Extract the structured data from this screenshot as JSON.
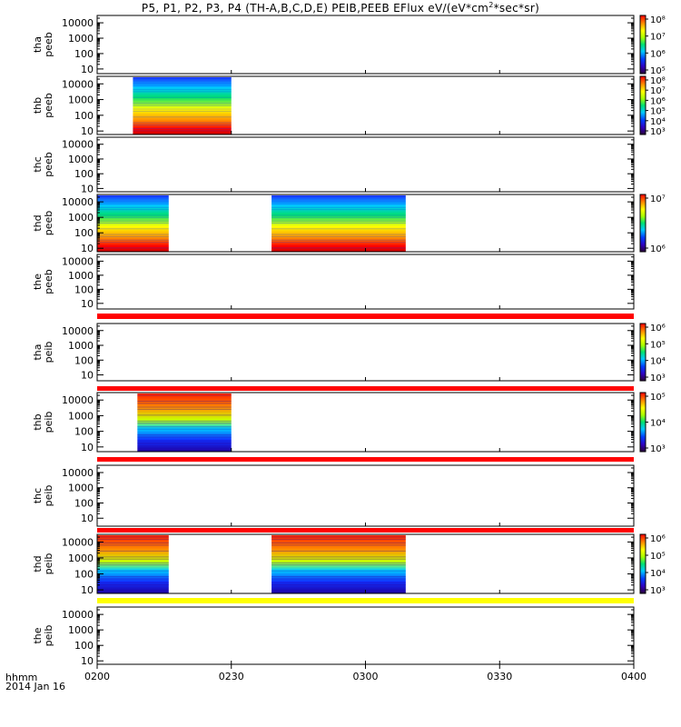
{
  "figure": {
    "title_text": "P5, P1, P2, P3, P4 (TH-A,B,C,D,E) PEIB,PEEB EFlux eV/(eV*cm",
    "title_sup": "2",
    "title_tail": "*sec*sr)",
    "time_label": "hhmm",
    "date_label": "2014 Jan 16",
    "accent_colors": {
      "quality_bar_red": "#ff0000",
      "quality_bar_yellow": "#ffff00"
    }
  },
  "chart_data": {
    "type": "heatmap",
    "x_axis": {
      "unit": "hhmm",
      "range": [
        "0200",
        "0400"
      ],
      "ticks": [
        "0200",
        "0230",
        "0300",
        "0330",
        "0400"
      ]
    },
    "y_axis": {
      "scale": "log",
      "unit": "eV"
    },
    "colorbar_scale": "log",
    "panels": [
      {
        "probe": "tha",
        "product": "peeb",
        "ylabel": [
          "tha",
          "peeb"
        ],
        "yticks": [
          "10000",
          "1000",
          "100",
          "10"
        ],
        "ylim": [
          5,
          30000
        ],
        "data_intervals": [],
        "colorbar_ticks": [
          "10⁸",
          "10⁷",
          "10⁶",
          "10⁵"
        ]
      },
      {
        "probe": "thb",
        "product": "peeb",
        "ylabel": [
          "thb",
          "peeb"
        ],
        "yticks": [
          "10000",
          "1000",
          "100",
          "10"
        ],
        "ylim": [
          6,
          30000
        ],
        "data_intervals": [
          [
            "0208",
            "0230"
          ]
        ],
        "colorbar_ticks": [
          "10⁸",
          "10⁷",
          "10⁶",
          "10⁵",
          "10⁴",
          "10³"
        ]
      },
      {
        "probe": "thc",
        "product": "peeb",
        "ylabel": [
          "thc",
          "peeb"
        ],
        "yticks": [
          "10000",
          "1000",
          "100",
          "10"
        ],
        "ylim": [
          6,
          30000
        ],
        "data_intervals": [],
        "colorbar_ticks": []
      },
      {
        "probe": "thd",
        "product": "peeb",
        "ylabel": [
          "thd",
          "peeb"
        ],
        "yticks": [
          "10000",
          "1000",
          "100",
          "10"
        ],
        "ylim": [
          6,
          30000
        ],
        "data_intervals": [
          [
            "0200",
            "0216"
          ],
          [
            "0239",
            "0309"
          ]
        ],
        "colorbar_ticks": [
          "10⁷",
          "10⁶"
        ]
      },
      {
        "probe": "the",
        "product": "peeb",
        "ylabel": [
          "the",
          "peeb"
        ],
        "yticks": [
          "10000",
          "1000",
          "100",
          "10"
        ],
        "ylim": [
          4,
          30000
        ],
        "data_intervals": [],
        "colorbar_ticks": []
      },
      {
        "probe": "tha",
        "product": "peib",
        "ylabel": [
          "tha",
          "peib"
        ],
        "yticks": [
          "10000",
          "1000",
          "100",
          "10"
        ],
        "ylim": [
          4,
          30000
        ],
        "data_intervals": [],
        "colorbar_ticks": [
          "10⁶",
          "10⁵",
          "10⁴",
          "10³"
        ]
      },
      {
        "probe": "thb",
        "product": "peib",
        "ylabel": [
          "thb",
          "peib"
        ],
        "yticks": [
          "10000",
          "1000",
          "100",
          "10"
        ],
        "ylim": [
          5,
          30000
        ],
        "data_intervals": [
          [
            "0209",
            "0230"
          ]
        ],
        "colorbar_ticks": [
          "10⁵",
          "10⁴",
          "10³"
        ]
      },
      {
        "probe": "thc",
        "product": "peib",
        "ylabel": [
          "thc",
          "peib"
        ],
        "yticks": [
          "10000",
          "1000",
          "100",
          "10"
        ],
        "ylim": [
          3,
          30000
        ],
        "data_intervals": [],
        "colorbar_ticks": []
      },
      {
        "probe": "thd",
        "product": "peib",
        "ylabel": [
          "thd",
          "peib"
        ],
        "yticks": [
          "10000",
          "1000",
          "100",
          "10"
        ],
        "ylim": [
          6,
          30000
        ],
        "data_intervals": [
          [
            "0200",
            "0216"
          ],
          [
            "0239",
            "0309"
          ]
        ],
        "colorbar_ticks": [
          "10⁶",
          "10⁵",
          "10⁴",
          "10³"
        ]
      },
      {
        "probe": "the",
        "product": "peib",
        "ylabel": [
          "the",
          "peib"
        ],
        "yticks": [
          "10000",
          "1000",
          "100",
          "10"
        ],
        "ylim": [
          6,
          30000
        ],
        "data_intervals": [],
        "colorbar_ticks": []
      }
    ]
  }
}
